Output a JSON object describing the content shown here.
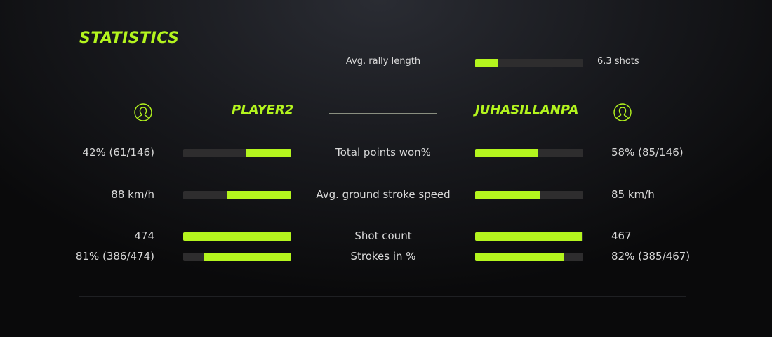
{
  "title": "STATISTICS",
  "accent": "#b4f51e",
  "rally": {
    "label": "Avg. rally length",
    "value": "6.3 shots",
    "fill": 0.21
  },
  "players": {
    "left": "PLAYER2",
    "right": "JUHASILLANPA"
  },
  "stats": [
    {
      "label": "Total points won%",
      "left": "42% (61/146)",
      "right": "58% (85/146)",
      "left_fill": 0.42,
      "right_fill": 0.58
    },
    {
      "label": "Avg. ground stroke speed",
      "left": "88 km/h",
      "right": "85 km/h",
      "left_fill": 0.6,
      "right_fill": 0.6
    },
    {
      "label": "Shot count",
      "left": "474",
      "right": "467",
      "left_fill": 1.0,
      "right_fill": 0.985
    },
    {
      "label": "Strokes in %",
      "left": "81% (386/474)",
      "right": "82% (385/467)",
      "left_fill": 0.81,
      "right_fill": 0.82
    }
  ]
}
